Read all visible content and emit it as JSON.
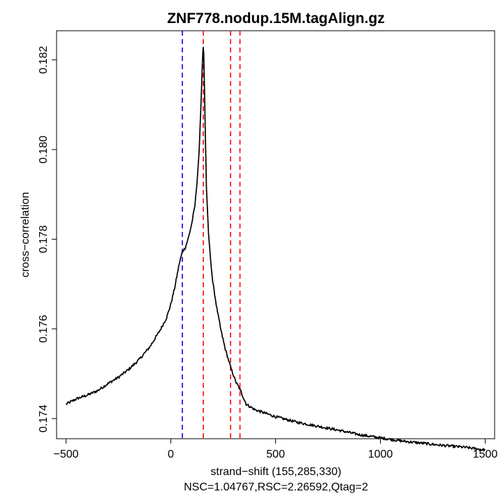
{
  "chart_data": {
    "type": "line",
    "title": "ZNF778.nodup.15M.tagAlign.gz",
    "xlabel": "strand−shift (155,285,330)",
    "subtitle": "NSC=1.04767,RSC=2.26592,Qtag=2",
    "ylabel": "cross−correlation",
    "xlim": [
      -545,
      1545
    ],
    "ylim": [
      0.17355,
      0.18265
    ],
    "xticks": [
      -500,
      0,
      500,
      1000,
      1500
    ],
    "xtick_labels": [
      "−500",
      "0",
      "500",
      "1000",
      "1500"
    ],
    "yticks": [
      0.174,
      0.176,
      0.178,
      0.18,
      0.182
    ],
    "ytick_labels": [
      "0.174",
      "0.176",
      "0.178",
      "0.180",
      "0.182"
    ],
    "grid": false,
    "legend": "none",
    "series": [
      {
        "color": "#000000",
        "x": [
          -500,
          -450,
          -400,
          -350,
          -300,
          -250,
          -200,
          -150,
          -100,
          -50,
          -20,
          0,
          20,
          40,
          55,
          70,
          85,
          100,
          115,
          125,
          135,
          140,
          145,
          150,
          153,
          155,
          157,
          160,
          165,
          170,
          180,
          190,
          200,
          220,
          240,
          260,
          285,
          310,
          330,
          360,
          400,
          450,
          500,
          600,
          700,
          800,
          900,
          1000,
          1100,
          1200,
          1300,
          1400,
          1500
        ],
        "y": [
          0.17432,
          0.17444,
          0.17452,
          0.17462,
          0.17478,
          0.17492,
          0.1751,
          0.17532,
          0.1756,
          0.17598,
          0.17625,
          0.17655,
          0.17695,
          0.17745,
          0.17772,
          0.17782,
          0.17805,
          0.17835,
          0.17875,
          0.17925,
          0.17995,
          0.18055,
          0.18115,
          0.18185,
          0.18218,
          0.18228,
          0.18215,
          0.1815,
          0.18025,
          0.17915,
          0.17812,
          0.17755,
          0.17705,
          0.17645,
          0.17595,
          0.17555,
          0.17515,
          0.17482,
          0.17465,
          0.17432,
          0.1742,
          0.17412,
          0.17404,
          0.17392,
          0.17383,
          0.17374,
          0.17364,
          0.17357,
          0.1735,
          0.17345,
          0.1734,
          0.17336,
          0.1733
        ]
      }
    ],
    "vlines": [
      {
        "x": 55,
        "color": "#0000ff",
        "style": "dashed"
      },
      {
        "x": 155,
        "color": "#ff0000",
        "style": "dashed"
      },
      {
        "x": 285,
        "color": "#ff0000",
        "style": "dashed"
      },
      {
        "x": 330,
        "color": "#ff0000",
        "style": "dashed"
      }
    ]
  }
}
